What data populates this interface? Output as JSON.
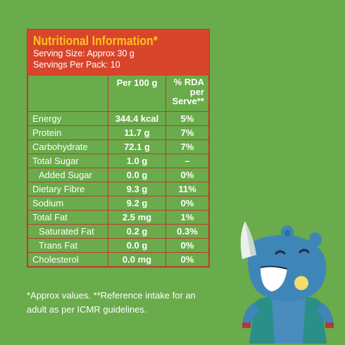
{
  "panel": {
    "title": "Nutritional Information*",
    "serving_size": "Serving Size: Approx 30 g",
    "servings_per_pack": "Servings Per Pack: 10"
  },
  "table": {
    "headers": {
      "per100": "Per 100 g",
      "rda_line1": "% RDA",
      "rda_line2": "per",
      "rda_line3": "Serve**"
    },
    "rows": [
      {
        "name": "Energy",
        "per100": "344.4 kcal",
        "rda": "5%"
      },
      {
        "name": "Protein",
        "per100": "11.7 g",
        "rda": "7%"
      },
      {
        "name": "Carbohydrate",
        "per100": "72.1 g",
        "rda": "7%"
      },
      {
        "name": "Total Sugar",
        "per100": "1.0 g",
        "rda": "–"
      },
      {
        "name": "Added Sugar",
        "per100": "0.0 g",
        "rda": "0%"
      },
      {
        "name": "Dietary Fibre",
        "per100": "9.3 g",
        "rda": "11%"
      },
      {
        "name": "Sodium",
        "per100": "9.2 g",
        "rda": "0%"
      },
      {
        "name": "Total Fat",
        "per100": "2.5 mg",
        "rda": "1%"
      },
      {
        "name": "Saturated Fat",
        "per100": "0.2 g",
        "rda": "0.3%"
      },
      {
        "name": "Trans Fat",
        "per100": "0.0 g",
        "rda": "0%"
      },
      {
        "name": "Cholesterol",
        "per100": "0.0 mg",
        "rda": "0%"
      }
    ]
  },
  "footnote": {
    "line1": "*Approx values. **Reference intake for an",
    "line2": "adult as per ICMR guidelines."
  },
  "colors": {
    "background": "#6aab4b",
    "header_red": "#d9452b",
    "title_yellow": "#ffc020",
    "rhino_blue": "#3f86b8"
  },
  "icons": {
    "mascot": "rhino-mascot-illustration"
  }
}
